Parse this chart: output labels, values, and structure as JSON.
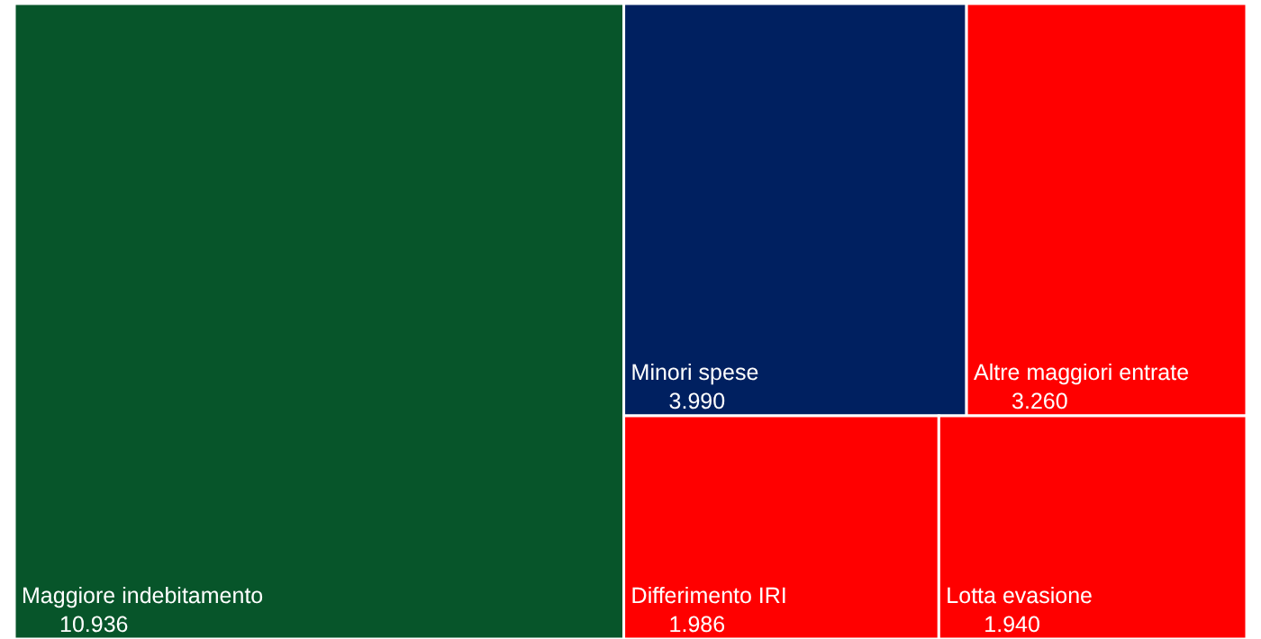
{
  "chart_data": {
    "type": "other",
    "categories": [
      "Maggiore indebitamento",
      "Minori spese",
      "Altre maggiori entrate",
      "Differimento IRI",
      "Lotta evasione"
    ],
    "values": [
      10936,
      3990,
      3260,
      1986,
      1940
    ],
    "value_labels": [
      "10.936",
      "3.990",
      "3.260",
      "1.986",
      "1.940"
    ],
    "colors": [
      "#07552a",
      "#002060",
      "#ff0000",
      "#ff0000",
      "#ff0000"
    ],
    "data_labels": true
  }
}
